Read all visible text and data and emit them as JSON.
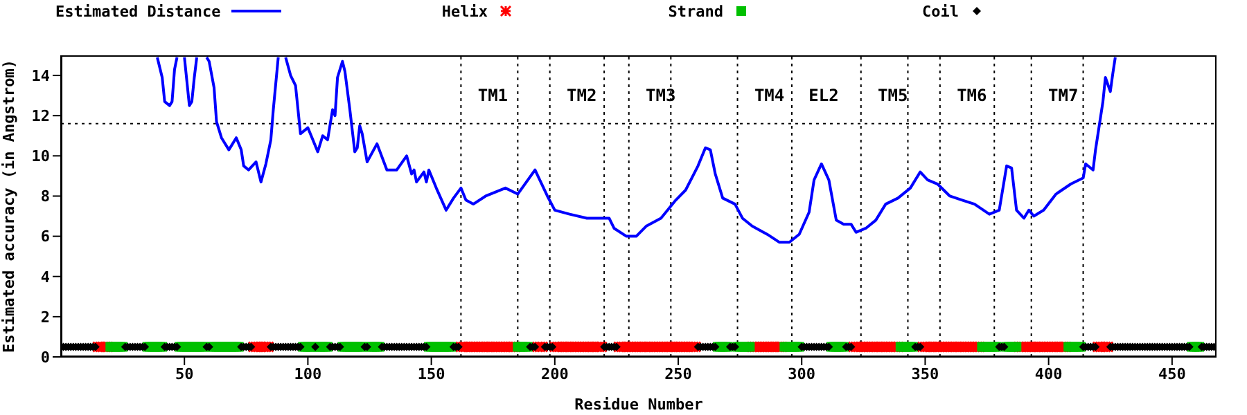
{
  "chart_data": {
    "type": "line",
    "xlabel": "Residue Number",
    "ylabel": "Estimated accuracy (in Angstrom)",
    "xlim": [
      0,
      468
    ],
    "xticks": [
      50,
      100,
      150,
      200,
      250,
      300,
      350,
      400,
      450
    ],
    "ylim": [
      0,
      15
    ],
    "yticks": [
      0,
      2,
      4,
      6,
      8,
      10,
      12,
      14
    ],
    "legend": "top",
    "line_style": "solid",
    "series": [
      {
        "name": "Estimated Distance",
        "type": "line",
        "color": "#0000ff",
        "marker": "none",
        "x": [
          39,
          41,
          42,
          44,
          45,
          46,
          47,
          48,
          50,
          52,
          53,
          54,
          55,
          57,
          59,
          60,
          62,
          63,
          65,
          66,
          68,
          71,
          73,
          74,
          76,
          79,
          81,
          83,
          85,
          86,
          88,
          89,
          91,
          93,
          95,
          96,
          97,
          100,
          102,
          104,
          106,
          108,
          110,
          111,
          112,
          114,
          115,
          117,
          119,
          120,
          121,
          122,
          124,
          128,
          132,
          136,
          140,
          142,
          143,
          144,
          147,
          148,
          149,
          152,
          156,
          159,
          162,
          164,
          167,
          172,
          180,
          185,
          192,
          197,
          200,
          206,
          213,
          220,
          222,
          224,
          229,
          233,
          237,
          243,
          249,
          253,
          258,
          261,
          263,
          265,
          268,
          273,
          276,
          280,
          286,
          291,
          295,
          299,
          303,
          305,
          308,
          311,
          314,
          317,
          320,
          322,
          326,
          330,
          334,
          339,
          344,
          348,
          351,
          355,
          360,
          365,
          370,
          376,
          380,
          383,
          385,
          387,
          390,
          392,
          394,
          398,
          403,
          409,
          414,
          415,
          418,
          419,
          422,
          423,
          425,
          426,
          427
        ],
        "values": [
          14.9,
          13.9,
          12.7,
          12.5,
          12.7,
          14.3,
          14.9,
          null,
          14.9,
          12.5,
          12.7,
          13.9,
          14.9,
          null,
          14.9,
          14.7,
          13.4,
          11.7,
          10.9,
          10.7,
          10.3,
          10.9,
          10.3,
          9.5,
          9.3,
          9.7,
          8.7,
          9.6,
          10.8,
          12.3,
          14.9,
          null,
          14.9,
          14.0,
          13.5,
          12.3,
          11.1,
          11.4,
          10.8,
          10.2,
          11.0,
          10.8,
          12.3,
          12.0,
          13.9,
          14.7,
          14.2,
          12.3,
          10.2,
          10.4,
          11.5,
          11.1,
          9.7,
          10.6,
          9.3,
          9.3,
          10.0,
          9.1,
          9.3,
          8.7,
          9.2,
          8.7,
          9.3,
          8.4,
          7.3,
          7.9,
          8.4,
          7.8,
          7.6,
          8.0,
          8.4,
          8.1,
          9.3,
          8.0,
          7.3,
          7.1,
          6.9,
          6.9,
          6.9,
          6.4,
          6.0,
          6.0,
          6.5,
          6.9,
          7.8,
          8.3,
          9.5,
          10.4,
          10.3,
          9.1,
          7.9,
          7.6,
          6.9,
          6.5,
          6.1,
          5.7,
          5.7,
          6.1,
          7.2,
          8.8,
          9.6,
          8.8,
          6.8,
          6.6,
          6.6,
          6.2,
          6.4,
          6.8,
          7.6,
          7.9,
          8.4,
          9.2,
          8.8,
          8.6,
          8.0,
          7.8,
          7.6,
          7.1,
          7.3,
          9.5,
          9.4,
          7.3,
          6.9,
          7.3,
          7.0,
          7.3,
          8.1,
          8.6,
          8.9,
          9.6,
          9.3,
          10.3,
          12.7,
          13.9,
          13.2,
          14.1,
          14.9
        ]
      },
      {
        "name": "Helix",
        "type": "scatter",
        "color": "#ff0000",
        "marker": "cross",
        "x": [
          15,
          16,
          17,
          18,
          19,
          78,
          79,
          80,
          81,
          82,
          83,
          84,
          162,
          163,
          164,
          165,
          166,
          167,
          168,
          169,
          170,
          171,
          172,
          173,
          174,
          175,
          176,
          177,
          178,
          179,
          180,
          181,
          182,
          183,
          184,
          193,
          194,
          195,
          200,
          201,
          202,
          203,
          204,
          205,
          206,
          207,
          208,
          209,
          210,
          211,
          212,
          213,
          214,
          215,
          216,
          217,
          218,
          219,
          226,
          227,
          228,
          229,
          230,
          231,
          232,
          233,
          234,
          235,
          236,
          237,
          238,
          239,
          240,
          241,
          242,
          243,
          244,
          245,
          246,
          247,
          248,
          249,
          250,
          251,
          252,
          253,
          254,
          255,
          256,
          257,
          280,
          281,
          282,
          283,
          284,
          285,
          286,
          287,
          288,
          289,
          290,
          291,
          292,
          321,
          322,
          323,
          324,
          325,
          326,
          327,
          328,
          329,
          330,
          331,
          332,
          333,
          334,
          335,
          336,
          337,
          338,
          339,
          349,
          350,
          351,
          352,
          353,
          354,
          355,
          356,
          357,
          358,
          359,
          360,
          361,
          362,
          363,
          364,
          365,
          366,
          367,
          368,
          369,
          370,
          371,
          372,
          388,
          389,
          390,
          391,
          392,
          393,
          394,
          395,
          396,
          397,
          398,
          399,
          400,
          401,
          402,
          403,
          404,
          405,
          406,
          407,
          420,
          421,
          422,
          423,
          424
        ],
        "values": [
          0.5,
          0.5,
          0.5,
          0.5,
          0.5,
          0.5,
          0.5,
          0.5,
          0.5,
          0.5,
          0.5,
          0.5,
          0.5,
          0.5,
          0.5,
          0.5,
          0.5,
          0.5,
          0.5,
          0.5,
          0.5,
          0.5,
          0.5,
          0.5,
          0.5,
          0.5,
          0.5,
          0.5,
          0.5,
          0.5,
          0.5,
          0.5,
          0.5,
          0.5,
          0.5,
          0.5,
          0.5,
          0.5,
          0.5,
          0.5,
          0.5,
          0.5,
          0.5,
          0.5,
          0.5,
          0.5,
          0.5,
          0.5,
          0.5,
          0.5,
          0.5,
          0.5,
          0.5,
          0.5,
          0.5,
          0.5,
          0.5,
          0.5,
          0.5,
          0.5,
          0.5,
          0.5,
          0.5,
          0.5,
          0.5,
          0.5,
          0.5,
          0.5,
          0.5,
          0.5,
          0.5,
          0.5,
          0.5,
          0.5,
          0.5,
          0.5,
          0.5,
          0.5,
          0.5,
          0.5,
          0.5,
          0.5,
          0.5,
          0.5,
          0.5,
          0.5,
          0.5,
          0.5,
          0.5,
          0.5,
          0.5,
          0.5,
          0.5,
          0.5,
          0.5,
          0.5,
          0.5,
          0.5,
          0.5,
          0.5,
          0.5,
          0.5,
          0.5,
          0.5,
          0.5,
          0.5,
          0.5,
          0.5,
          0.5,
          0.5,
          0.5,
          0.5,
          0.5,
          0.5,
          0.5,
          0.5,
          0.5,
          0.5,
          0.5,
          0.5,
          0.5,
          0.5,
          0.5,
          0.5,
          0.5,
          0.5,
          0.5,
          0.5,
          0.5,
          0.5,
          0.5,
          0.5,
          0.5,
          0.5,
          0.5,
          0.5,
          0.5,
          0.5,
          0.5,
          0.5,
          0.5,
          0.5,
          0.5,
          0.5,
          0.5,
          0.5,
          0.5,
          0.5,
          0.5,
          0.5,
          0.5,
          0.5,
          0.5,
          0.5,
          0.5,
          0.5,
          0.5,
          0.5,
          0.5,
          0.5,
          0.5,
          0.5,
          0.5,
          0.5,
          0.5,
          0.5,
          0.5,
          0.5,
          0.5,
          0.5,
          0.5
        ]
      },
      {
        "name": "Strand",
        "type": "scatter",
        "color": "#00c000",
        "marker": "square",
        "x": [
          20,
          21,
          22,
          23,
          24,
          25,
          35,
          36,
          37,
          38,
          39,
          40,
          41,
          48,
          49,
          50,
          51,
          52,
          53,
          54,
          55,
          56,
          57,
          58,
          61,
          62,
          63,
          64,
          65,
          66,
          67,
          68,
          69,
          70,
          71,
          72,
          98,
          99,
          100,
          101,
          102,
          104,
          105,
          106,
          107,
          108,
          114,
          115,
          116,
          117,
          118,
          119,
          120,
          121,
          122,
          125,
          126,
          127,
          128,
          129,
          149,
          150,
          151,
          152,
          153,
          154,
          155,
          156,
          157,
          158,
          185,
          186,
          187,
          188,
          189,
          266,
          267,
          268,
          269,
          270,
          274,
          275,
          276,
          277,
          278,
          279,
          293,
          294,
          295,
          296,
          297,
          298,
          299,
          312,
          313,
          314,
          315,
          316,
          317,
          340,
          341,
          342,
          343,
          344,
          345,
          373,
          374,
          375,
          376,
          377,
          378,
          379,
          383,
          384,
          385,
          386,
          387,
          408,
          409,
          410,
          411,
          412,
          413,
          458,
          459,
          460,
          461
        ],
        "values": [
          0.5,
          0.5,
          0.5,
          0.5,
          0.5,
          0.5,
          0.5,
          0.5,
          0.5,
          0.5,
          0.5,
          0.5,
          0.5,
          0.5,
          0.5,
          0.5,
          0.5,
          0.5,
          0.5,
          0.5,
          0.5,
          0.5,
          0.5,
          0.5,
          0.5,
          0.5,
          0.5,
          0.5,
          0.5,
          0.5,
          0.5,
          0.5,
          0.5,
          0.5,
          0.5,
          0.5,
          0.5,
          0.5,
          0.5,
          0.5,
          0.5,
          0.5,
          0.5,
          0.5,
          0.5,
          0.5,
          0.5,
          0.5,
          0.5,
          0.5,
          0.5,
          0.5,
          0.5,
          0.5,
          0.5,
          0.5,
          0.5,
          0.5,
          0.5,
          0.5,
          0.5,
          0.5,
          0.5,
          0.5,
          0.5,
          0.5,
          0.5,
          0.5,
          0.5,
          0.5,
          0.5,
          0.5,
          0.5,
          0.5,
          0.5,
          0.5,
          0.5,
          0.5,
          0.5,
          0.5,
          0.5,
          0.5,
          0.5,
          0.5,
          0.5,
          0.5,
          0.5,
          0.5,
          0.5,
          0.5,
          0.5,
          0.5,
          0.5,
          0.5,
          0.5,
          0.5,
          0.5,
          0.5,
          0.5,
          0.5,
          0.5,
          0.5,
          0.5,
          0.5,
          0.5,
          0.5,
          0.5,
          0.5,
          0.5,
          0.5,
          0.5,
          0.5,
          0.5,
          0.5,
          0.5,
          0.5,
          0.5,
          0.5,
          0.5,
          0.5,
          0.5,
          0.5,
          0.5,
          0.5,
          0.5,
          0.5,
          0.5
        ]
      },
      {
        "name": "Coil",
        "type": "scatter",
        "color": "#000000",
        "marker": "diamond",
        "x": [
          1,
          2,
          3,
          4,
          5,
          6,
          7,
          8,
          9,
          10,
          11,
          12,
          13,
          14,
          26,
          27,
          28,
          29,
          30,
          31,
          32,
          33,
          34,
          42,
          43,
          44,
          45,
          46,
          47,
          59,
          60,
          73,
          74,
          75,
          76,
          77,
          85,
          86,
          87,
          88,
          89,
          90,
          91,
          92,
          93,
          94,
          95,
          96,
          97,
          103,
          109,
          110,
          111,
          112,
          113,
          123,
          124,
          130,
          131,
          132,
          133,
          134,
          135,
          136,
          137,
          138,
          139,
          140,
          141,
          142,
          143,
          144,
          145,
          146,
          147,
          148,
          159,
          160,
          161,
          190,
          191,
          192,
          196,
          197,
          198,
          199,
          220,
          221,
          222,
          223,
          224,
          225,
          258,
          259,
          260,
          261,
          262,
          263,
          264,
          265,
          271,
          272,
          273,
          300,
          301,
          302,
          303,
          304,
          305,
          306,
          307,
          308,
          309,
          310,
          311,
          318,
          319,
          320,
          346,
          347,
          348,
          380,
          381,
          382,
          414,
          415,
          416,
          417,
          418,
          419,
          425,
          426,
          427,
          428,
          429,
          430,
          431,
          432,
          433,
          434,
          435,
          436,
          437,
          438,
          439,
          440,
          441,
          442,
          443,
          444,
          445,
          446,
          447,
          448,
          449,
          450,
          451,
          452,
          453,
          454,
          455,
          456,
          457,
          462,
          463,
          464,
          465,
          466,
          467
        ],
        "values": [
          0.5,
          0.5,
          0.5,
          0.5,
          0.5,
          0.5,
          0.5,
          0.5,
          0.5,
          0.5,
          0.5,
          0.5,
          0.5,
          0.5,
          0.5,
          0.5,
          0.5,
          0.5,
          0.5,
          0.5,
          0.5,
          0.5,
          0.5,
          0.5,
          0.5,
          0.5,
          0.5,
          0.5,
          0.5,
          0.5,
          0.5,
          0.5,
          0.5,
          0.5,
          0.5,
          0.5,
          0.5,
          0.5,
          0.5,
          0.5,
          0.5,
          0.5,
          0.5,
          0.5,
          0.5,
          0.5,
          0.5,
          0.5,
          0.5,
          0.5,
          0.5,
          0.5,
          0.5,
          0.5,
          0.5,
          0.5,
          0.5,
          0.5,
          0.5,
          0.5,
          0.5,
          0.5,
          0.5,
          0.5,
          0.5,
          0.5,
          0.5,
          0.5,
          0.5,
          0.5,
          0.5,
          0.5,
          0.5,
          0.5,
          0.5,
          0.5,
          0.5,
          0.5,
          0.5,
          0.5,
          0.5,
          0.5,
          0.5,
          0.5,
          0.5,
          0.5,
          0.5,
          0.5,
          0.5,
          0.5,
          0.5,
          0.5,
          0.5,
          0.5,
          0.5,
          0.5,
          0.5,
          0.5,
          0.5,
          0.5,
          0.5,
          0.5,
          0.5,
          0.5,
          0.5,
          0.5,
          0.5,
          0.5,
          0.5,
          0.5,
          0.5,
          0.5,
          0.5,
          0.5,
          0.5,
          0.5,
          0.5,
          0.5,
          0.5,
          0.5,
          0.5,
          0.5,
          0.5,
          0.5,
          0.5,
          0.5,
          0.5,
          0.5,
          0.5,
          0.5,
          0.5,
          0.5,
          0.5,
          0.5,
          0.5,
          0.5,
          0.5,
          0.5,
          0.5,
          0.5,
          0.5,
          0.5,
          0.5,
          0.5,
          0.5,
          0.5,
          0.5,
          0.5,
          0.5,
          0.5,
          0.5,
          0.5,
          0.5,
          0.5,
          0.5,
          0.5,
          0.5,
          0.5,
          0.5,
          0.5,
          0.5,
          0.5,
          0.5,
          0.5,
          0.5,
          0.5,
          0.5,
          0.5,
          0.5
        ]
      }
    ],
    "ref_lines": [
      {
        "axis": "x",
        "value": 162,
        "color": "#000000",
        "line_style": "dotted",
        "label": "TM1"
      },
      {
        "axis": "x",
        "value": 185,
        "color": "#000000",
        "line_style": "dotted"
      },
      {
        "axis": "x",
        "value": 198,
        "color": "#000000",
        "line_style": "dotted",
        "label": "TM2"
      },
      {
        "axis": "x",
        "value": 220,
        "color": "#000000",
        "line_style": "dotted"
      },
      {
        "axis": "x",
        "value": 230,
        "color": "#000000",
        "line_style": "dotted",
        "label": "TM3"
      },
      {
        "axis": "x",
        "value": 247,
        "color": "#000000",
        "line_style": "dotted"
      },
      {
        "axis": "x",
        "value": 274,
        "color": "#000000",
        "line_style": "dotted",
        "label": "TM4"
      },
      {
        "axis": "x",
        "value": 296,
        "color": "#000000",
        "line_style": "dotted",
        "label": "EL2"
      },
      {
        "axis": "x",
        "value": 324,
        "color": "#000000",
        "line_style": "dotted",
        "label": "TM5"
      },
      {
        "axis": "x",
        "value": 343,
        "color": "#000000",
        "line_style": "dotted"
      },
      {
        "axis": "x",
        "value": 356,
        "color": "#000000",
        "line_style": "dotted",
        "label": "TM6"
      },
      {
        "axis": "x",
        "value": 378,
        "color": "#000000",
        "line_style": "dotted"
      },
      {
        "axis": "x",
        "value": 393,
        "color": "#000000",
        "line_style": "dotted",
        "label": "TM7"
      },
      {
        "axis": "x",
        "value": 414,
        "color": "#000000",
        "line_style": "dotted"
      },
      {
        "axis": "y",
        "value": 11.6,
        "color": "#000000",
        "line_style": "dotted"
      }
    ]
  }
}
